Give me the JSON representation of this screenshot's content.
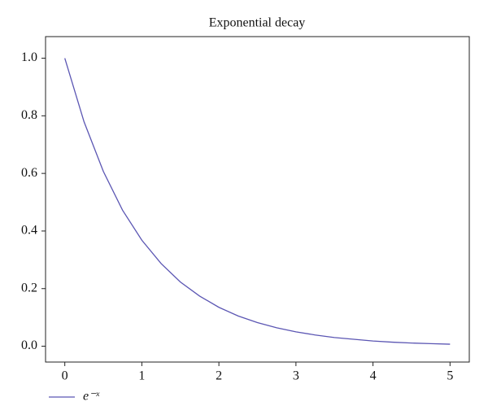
{
  "chart_data": {
    "type": "line",
    "title": "Exponential decay",
    "x": [
      0,
      0.25,
      0.5,
      0.75,
      1,
      1.25,
      1.5,
      1.75,
      2,
      2.25,
      2.5,
      2.75,
      3,
      3.25,
      3.5,
      3.75,
      4,
      4.25,
      4.5,
      4.75,
      5
    ],
    "series": [
      {
        "name": "e⁻ˣ",
        "color": "#5b56b3",
        "values": [
          1,
          0.779,
          0.607,
          0.472,
          0.368,
          0.287,
          0.223,
          0.174,
          0.135,
          0.105,
          0.082,
          0.064,
          0.05,
          0.039,
          0.03,
          0.024,
          0.018,
          0.014,
          0.011,
          0.009,
          0.007
        ]
      }
    ],
    "xlim": [
      -0.25,
      5.25
    ],
    "xticks": [
      0,
      1,
      2,
      3,
      4,
      5
    ],
    "ylim": [
      -0.055,
      1.075
    ],
    "yticks": [
      {
        "value": 0,
        "label": "0.0"
      },
      0.2,
      0.4,
      0.6,
      0.8,
      {
        "value": 1,
        "label": "1.0"
      }
    ],
    "grid": false,
    "legend": "lower left"
  }
}
